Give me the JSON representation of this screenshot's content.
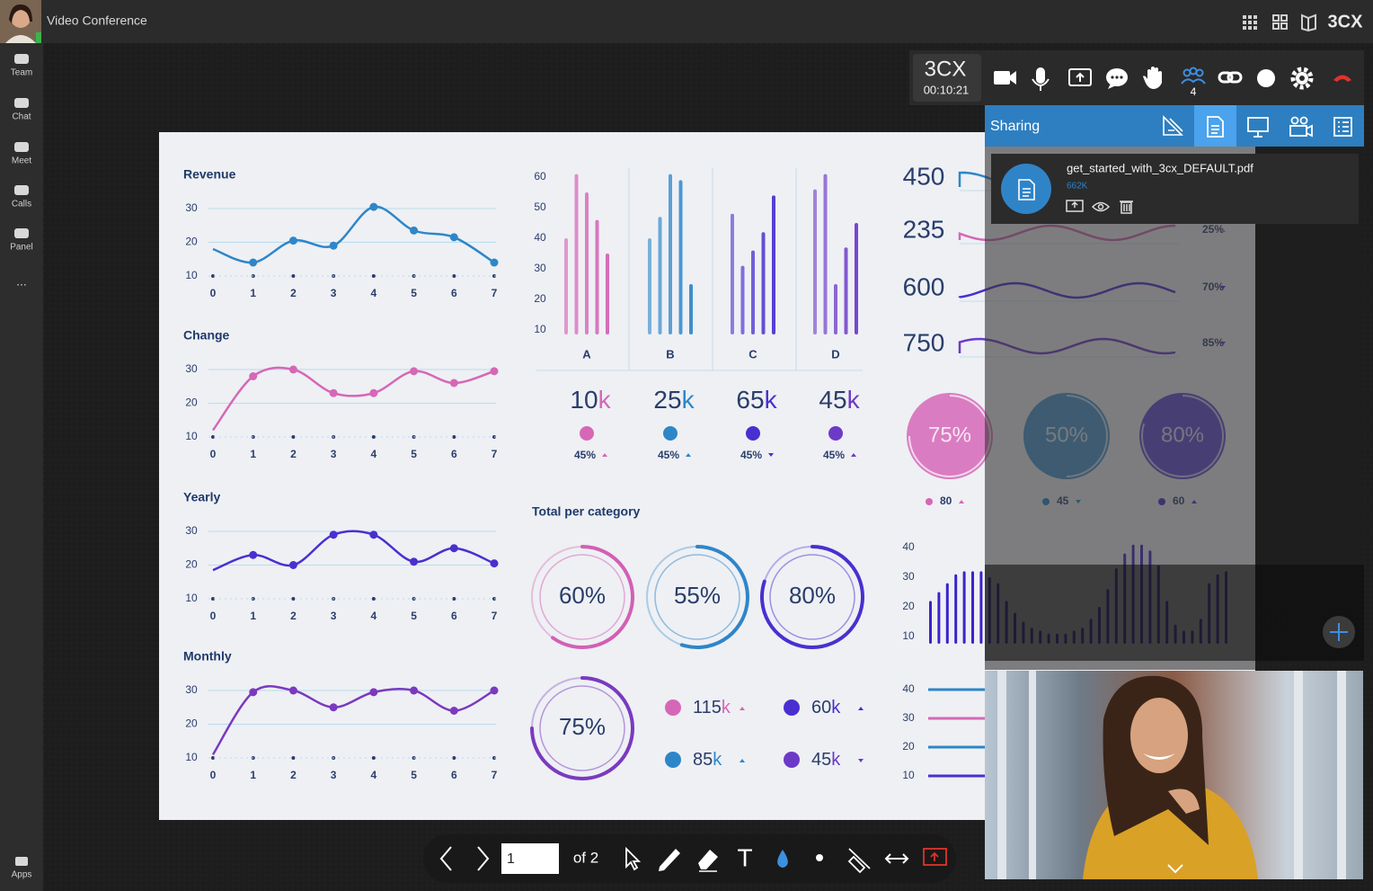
{
  "header": {
    "title": "Video Conference",
    "brand": "3CX"
  },
  "sidebar": {
    "items": [
      "Team",
      "Chat",
      "Meet",
      "Calls",
      "Panel"
    ],
    "more": "...",
    "bottom": "Apps"
  },
  "call_toolbar": {
    "brand": "3CX",
    "timer": "00:10:21",
    "participants": "4"
  },
  "sharing_panel": {
    "title": "Sharing",
    "file": {
      "name": "get_started_with_3cx_DEFAULT.pdf",
      "size": "662K"
    }
  },
  "page_toolbar": {
    "page": "1",
    "of": "of 2"
  },
  "document": {
    "line_charts": [
      {
        "title": "Revenue",
        "color": "#2e86c8",
        "ylim": [
          10,
          30
        ],
        "yticks": [
          10,
          20,
          30
        ],
        "xticks": [
          0,
          1,
          2,
          3,
          4,
          5,
          6,
          7
        ],
        "values": [
          18,
          14,
          20.5,
          19,
          30.5,
          23.5,
          21.5,
          14
        ]
      },
      {
        "title": "Change",
        "color": "#d667b7",
        "ylim": [
          10,
          30
        ],
        "yticks": [
          10,
          20,
          30
        ],
        "xticks": [
          0,
          1,
          2,
          3,
          4,
          5,
          6,
          7
        ],
        "values": [
          12,
          28,
          30,
          23,
          23,
          29.5,
          26,
          29.5
        ]
      },
      {
        "title": "Yearly",
        "color": "#4a2fd0",
        "ylim": [
          10,
          30
        ],
        "yticks": [
          10,
          20,
          30
        ],
        "xticks": [
          0,
          1,
          2,
          3,
          4,
          5,
          6,
          7
        ],
        "values": [
          18.5,
          23,
          20,
          29,
          29,
          21,
          25,
          20.5
        ]
      },
      {
        "title": "Monthly",
        "color": "#7b39c0",
        "ylim": [
          10,
          30
        ],
        "yticks": [
          10,
          20,
          30
        ],
        "xticks": [
          0,
          1,
          2,
          3,
          4,
          5,
          6,
          7
        ],
        "values": [
          11,
          29.5,
          30,
          25,
          29.5,
          30,
          24,
          30
        ]
      }
    ],
    "bar_chart": {
      "ylim": [
        10,
        60
      ],
      "yticks": [
        10,
        20,
        30,
        40,
        50,
        60
      ],
      "groups": [
        {
          "category": "A",
          "color": "#d35fb5",
          "values": [
            40,
            61,
            55,
            46,
            35
          ]
        },
        {
          "category": "B",
          "color": "#2e86c8",
          "values": [
            40,
            47,
            61,
            59,
            25
          ]
        },
        {
          "category": "C",
          "color": "#4a2fd0",
          "values": [
            48,
            31,
            36,
            42,
            54
          ]
        },
        {
          "category": "D",
          "color": "#6d3ac8",
          "values": [
            56,
            61,
            25,
            37,
            45
          ]
        }
      ]
    },
    "bar_stats": [
      {
        "number": "10",
        "unit": "k",
        "change": "45%",
        "trend": "up",
        "color": "#d667b7"
      },
      {
        "number": "25",
        "unit": "k",
        "change": "45%",
        "trend": "up",
        "color": "#2e86c8"
      },
      {
        "number": "65",
        "unit": "k",
        "change": "45%",
        "trend": "down",
        "color": "#4a2fd0"
      },
      {
        "number": "45",
        "unit": "k",
        "change": "45%",
        "trend": "up",
        "color": "#6d3ac8"
      }
    ],
    "rings": {
      "title": "Total per category",
      "values": [
        60,
        55,
        80,
        75
      ],
      "value_labels": [
        "60%",
        "55%",
        "80%",
        "75%"
      ],
      "colors": [
        "#d35fb5",
        "#2e86c8",
        "#4a2fd0",
        "#7b39c0"
      ]
    },
    "ring_legend": [
      {
        "number": "115",
        "unit": "k",
        "trend": "up",
        "color": "#d667b7"
      },
      {
        "number": "60",
        "unit": "k",
        "trend": "up",
        "color": "#4a2fd0"
      },
      {
        "number": "85",
        "unit": "k",
        "trend": "up",
        "color": "#2e86c8"
      },
      {
        "number": "45",
        "unit": "k",
        "trend": "down",
        "color": "#6d3ac8"
      }
    ],
    "metrics": {
      "labels": [
        "450",
        "235",
        "600",
        "750"
      ],
      "changes": [
        "25%",
        "70%",
        "85%"
      ],
      "trends": [
        "up",
        "down",
        "down"
      ]
    },
    "gauges": {
      "values": [
        75,
        50,
        80
      ],
      "value_labels": [
        "75%",
        "50%",
        "80%"
      ],
      "notes": [
        "80",
        "45",
        "60"
      ],
      "trends": [
        "up",
        "down",
        "up"
      ],
      "colors": [
        "#d667b7",
        "#2e86c8",
        "#4a2fd0"
      ]
    },
    "histogram": {
      "ylim": [
        10,
        40
      ],
      "yticks": [
        40,
        30,
        20,
        10
      ],
      "color": "#3b22c9",
      "values": [
        22,
        25,
        28,
        31,
        32,
        32,
        32,
        30,
        28,
        22,
        18,
        15,
        13,
        12,
        11,
        11,
        11,
        12,
        13,
        16,
        20,
        26,
        33,
        38,
        41,
        41,
        39,
        34,
        22,
        14,
        12,
        12,
        16,
        28,
        31,
        32
      ]
    },
    "bottom_ticks": [
      40,
      30,
      20,
      10
    ]
  }
}
